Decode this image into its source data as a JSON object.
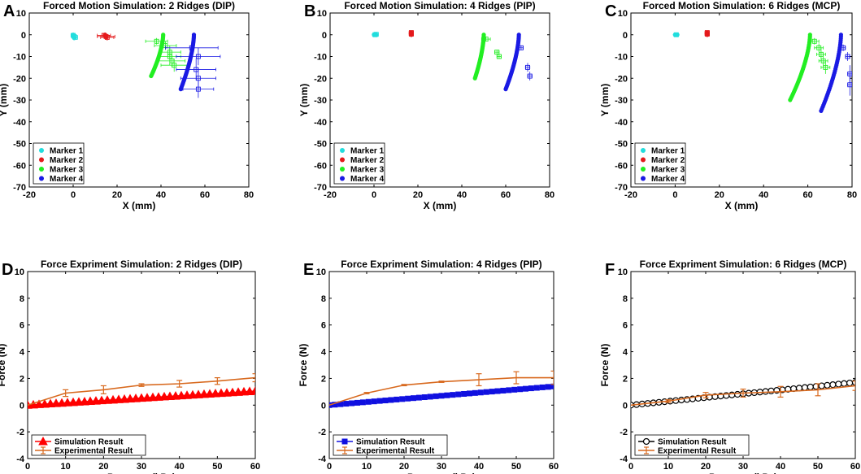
{
  "chart_data": [
    {
      "id": "A",
      "type": "scatter",
      "title": "Forced Motion Simulation: 2 Ridges (DIP)",
      "xlabel": "X (mm)",
      "ylabel": "Y (mm)",
      "xlim": [
        -20,
        80
      ],
      "ylim": [
        -70,
        10
      ],
      "xticks": [
        -20,
        0,
        20,
        40,
        60,
        80
      ],
      "yticks": [
        10,
        0,
        -10,
        -20,
        -30,
        -40,
        -50,
        -60,
        -70
      ],
      "legend": {
        "position": "bottom-left",
        "entries": [
          "Marker 1",
          "Marker 2",
          "Marker 3",
          "Marker 4"
        ]
      },
      "series": [
        {
          "name": "Marker 1",
          "color": "#22dddd",
          "sim": {
            "x0": 0,
            "y0": 0,
            "x1": 0.5,
            "y1": -1.5
          },
          "exp": [
            {
              "x": 0,
              "y": -0.3,
              "xe": 1,
              "ye": 0.3
            },
            {
              "x": 0.5,
              "y": -0.8,
              "xe": 1,
              "ye": 0.5
            },
            {
              "x": 1,
              "y": -1.2,
              "xe": 1,
              "ye": 0.5
            }
          ]
        },
        {
          "name": "Marker 2",
          "color": "#e41a1c",
          "sim": {
            "x0": 14.5,
            "y0": 0,
            "x1": 15,
            "y1": -1
          },
          "exp": [
            {
              "x": 14,
              "y": -0.3,
              "xe": 3,
              "ye": 1
            },
            {
              "x": 15,
              "y": -0.8,
              "xe": 4,
              "ye": 1.2
            },
            {
              "x": 15.5,
              "y": -1.2,
              "xe": 3,
              "ye": 1.5
            }
          ]
        },
        {
          "name": "Marker 3",
          "color": "#22ee22",
          "sim": {
            "x0": 41,
            "y0": 0,
            "x1": 35.5,
            "y1": -19
          },
          "exp": [
            {
              "x": 38,
              "y": -3,
              "xe": 5,
              "ye": 1.5
            },
            {
              "x": 42,
              "y": -5,
              "xe": 5,
              "ye": 2
            },
            {
              "x": 44,
              "y": -8,
              "xe": 5,
              "ye": 3
            },
            {
              "x": 44,
              "y": -10,
              "xe": 5,
              "ye": 4
            },
            {
              "x": 45,
              "y": -12,
              "xe": 6,
              "ye": 3
            },
            {
              "x": 46,
              "y": -14,
              "xe": 6,
              "ye": 3
            }
          ]
        },
        {
          "name": "Marker 4",
          "color": "#1a1ae4",
          "sim": {
            "x0": 55,
            "y0": 0,
            "x1": 49,
            "y1": -25
          },
          "exp": [
            {
              "x": 54,
              "y": -6,
              "xe": 12,
              "ye": 3
            },
            {
              "x": 57,
              "y": -10,
              "xe": 10,
              "ye": 4
            },
            {
              "x": 56,
              "y": -16,
              "xe": 9,
              "ye": 5
            },
            {
              "x": 57,
              "y": -20,
              "xe": 8,
              "ye": 5
            },
            {
              "x": 57,
              "y": -25,
              "xe": 7,
              "ye": 4
            }
          ]
        }
      ]
    },
    {
      "id": "B",
      "type": "scatter",
      "title": "Forced Motion Simulation: 4 Ridges (PIP)",
      "xlabel": "X (mm)",
      "ylabel": "Y (mm)",
      "xlim": [
        -20,
        80
      ],
      "ylim": [
        -70,
        10
      ],
      "xticks": [
        -20,
        0,
        20,
        40,
        60,
        80
      ],
      "yticks": [
        10,
        0,
        -10,
        -20,
        -30,
        -40,
        -50,
        -60,
        -70
      ],
      "legend": {
        "position": "bottom-left",
        "entries": [
          "Marker 1",
          "Marker 2",
          "Marker 3",
          "Marker 4"
        ]
      },
      "series": [
        {
          "name": "Marker 1",
          "color": "#22dddd",
          "sim": {
            "x0": 0,
            "y0": 0,
            "x1": 1,
            "y1": 0
          },
          "exp": [
            {
              "x": 0.5,
              "y": 0,
              "xe": 1,
              "ye": 0.3
            },
            {
              "x": 1,
              "y": 0.2,
              "xe": 1,
              "ye": 0.3
            }
          ]
        },
        {
          "name": "Marker 2",
          "color": "#e41a1c",
          "sim": {
            "x0": 17,
            "y0": 1,
            "x1": 17,
            "y1": 0
          },
          "exp": [
            {
              "x": 17,
              "y": 1,
              "xe": 1,
              "ye": 0.8
            },
            {
              "x": 17,
              "y": 0.3,
              "xe": 1,
              "ye": 0.8
            }
          ]
        },
        {
          "name": "Marker 3",
          "color": "#22ee22",
          "sim": {
            "x0": 50,
            "y0": 0,
            "x1": 46,
            "y1": -20
          },
          "exp": [
            {
              "x": 51,
              "y": -2,
              "xe": 2,
              "ye": 1
            },
            {
              "x": 56,
              "y": -8,
              "xe": 1,
              "ye": 1
            },
            {
              "x": 57,
              "y": -10,
              "xe": 1,
              "ye": 1
            }
          ]
        },
        {
          "name": "Marker 4",
          "color": "#1a1ae4",
          "sim": {
            "x0": 66,
            "y0": 0,
            "x1": 60,
            "y1": -25
          },
          "exp": [
            {
              "x": 67,
              "y": -6,
              "xe": 1,
              "ye": 1
            },
            {
              "x": 70,
              "y": -15,
              "xe": 1,
              "ye": 2
            },
            {
              "x": 71,
              "y": -19,
              "xe": 1,
              "ye": 2
            }
          ]
        }
      ]
    },
    {
      "id": "C",
      "type": "scatter",
      "title": "Forced Motion Simulation: 6 Ridges (MCP)",
      "xlabel": "X (mm)",
      "ylabel": "Y (mm)",
      "xlim": [
        -20,
        80
      ],
      "ylim": [
        -70,
        10
      ],
      "xticks": [
        -20,
        0,
        20,
        40,
        60,
        80
      ],
      "yticks": [
        10,
        0,
        -10,
        -20,
        -30,
        -40,
        -50,
        -60,
        -70
      ],
      "legend": {
        "position": "bottom-left",
        "entries": [
          "Marker 1",
          "Marker 2",
          "Marker 3",
          "Marker 4"
        ]
      },
      "series": [
        {
          "name": "Marker 1",
          "color": "#22dddd",
          "sim": {
            "x0": 0,
            "y0": 0,
            "x1": 1,
            "y1": 0
          },
          "exp": [
            {
              "x": 0.5,
              "y": 0,
              "xe": 1,
              "ye": 0.3
            }
          ]
        },
        {
          "name": "Marker 2",
          "color": "#e41a1c",
          "sim": {
            "x0": 14.5,
            "y0": 1,
            "x1": 14.5,
            "y1": 0
          },
          "exp": [
            {
              "x": 14.5,
              "y": 1,
              "xe": 1,
              "ye": 0.8
            },
            {
              "x": 14.5,
              "y": 0.3,
              "xe": 1,
              "ye": 0.8
            }
          ]
        },
        {
          "name": "Marker 3",
          "color": "#22ee22",
          "sim": {
            "x0": 61,
            "y0": 0,
            "x1": 52,
            "y1": -30
          },
          "exp": [
            {
              "x": 63,
              "y": -3,
              "xe": 2,
              "ye": 1.5
            },
            {
              "x": 65,
              "y": -6,
              "xe": 2,
              "ye": 2
            },
            {
              "x": 66,
              "y": -9,
              "xe": 2,
              "ye": 3
            },
            {
              "x": 67,
              "y": -12,
              "xe": 2,
              "ye": 3
            },
            {
              "x": 68,
              "y": -15,
              "xe": 2,
              "ye": 3
            }
          ]
        },
        {
          "name": "Marker 4",
          "color": "#1a1ae4",
          "sim": {
            "x0": 75,
            "y0": 0,
            "x1": 66,
            "y1": -35
          },
          "exp": [
            {
              "x": 76,
              "y": -6,
              "xe": 1,
              "ye": 1.5
            },
            {
              "x": 78,
              "y": -10,
              "xe": 1,
              "ye": 2
            },
            {
              "x": 79,
              "y": -18,
              "xe": 1,
              "ye": 4
            },
            {
              "x": 79,
              "y": -23,
              "xe": 1,
              "ye": 5
            }
          ]
        }
      ]
    },
    {
      "id": "D",
      "type": "line",
      "title": "Force Expriment Simulation: 2 Ridges (DIP)",
      "xlabel": "Pressure (kPa)",
      "ylabel": "Force (N)",
      "xlim": [
        0,
        60
      ],
      "ylim": [
        -4,
        10
      ],
      "xticks": [
        0,
        10,
        20,
        30,
        40,
        50,
        60
      ],
      "yticks": [
        10,
        8,
        6,
        4,
        2,
        0,
        -2,
        -4
      ],
      "legend": {
        "position": "bottom-left",
        "entries": [
          "Simulation Result",
          "Experimental Result"
        ]
      },
      "series": [
        {
          "name": "Simulation Result",
          "color": "#ff0000",
          "marker": "triangle",
          "x_start": 0,
          "x_end": 60,
          "y_start": 0,
          "y_end": 1.05,
          "points": 40
        },
        {
          "name": "Experimental Result",
          "color": "#d8691e",
          "x": [
            0,
            10,
            20,
            30,
            40,
            50,
            60
          ],
          "values": [
            0,
            0.9,
            1.15,
            1.5,
            1.6,
            1.8,
            2.05
          ],
          "err": [
            0,
            0.25,
            0.3,
            0.1,
            0.25,
            0.25,
            0.3
          ]
        }
      ]
    },
    {
      "id": "E",
      "type": "line",
      "title": "Force Expriment Simulation: 4 Ridges (PIP)",
      "xlabel": "Pressure (kPa)",
      "ylabel": "Force (N)",
      "xlim": [
        0,
        60
      ],
      "ylim": [
        -4,
        10
      ],
      "xticks": [
        0,
        10,
        20,
        30,
        40,
        50,
        60
      ],
      "yticks": [
        10,
        8,
        6,
        4,
        2,
        0,
        -2,
        -4
      ],
      "legend": {
        "position": "bottom-left",
        "entries": [
          "Simulation Result",
          "Experimental Result"
        ]
      },
      "series": [
        {
          "name": "Simulation Result",
          "color": "#1010e0",
          "marker": "square",
          "x_start": 0,
          "x_end": 60,
          "y_start": 0,
          "y_end": 1.4,
          "points": 40
        },
        {
          "name": "Experimental Result",
          "color": "#d8691e",
          "x": [
            0,
            10,
            20,
            30,
            40,
            50,
            60
          ],
          "values": [
            0,
            0.9,
            1.5,
            1.75,
            1.9,
            2.05,
            2.05
          ],
          "err": [
            0,
            0.05,
            0.05,
            0.05,
            0.45,
            0.45,
            0.5
          ]
        }
      ]
    },
    {
      "id": "F",
      "type": "line",
      "title": "Force Expriment Simulation: 6 Ridges (MCP)",
      "xlabel": "Pressure (kPa)",
      "ylabel": "Force (N)",
      "xlim": [
        0,
        60
      ],
      "ylim": [
        -4,
        10
      ],
      "xticks": [
        0,
        10,
        20,
        30,
        40,
        50,
        60
      ],
      "yticks": [
        10,
        8,
        6,
        4,
        2,
        0,
        -2,
        -4
      ],
      "legend": {
        "position": "bottom-left",
        "entries": [
          "Simulation Result",
          "Experimental Result"
        ]
      },
      "series": [
        {
          "name": "Simulation Result",
          "color": "#000000",
          "marker": "circle",
          "x_start": 0,
          "x_end": 60,
          "y_start": 0,
          "y_end": 1.7,
          "points": 40
        },
        {
          "name": "Experimental Result",
          "color": "#d8691e",
          "x": [
            0,
            10,
            20,
            30,
            40,
            50,
            60
          ],
          "values": [
            0,
            0.3,
            0.75,
            0.9,
            1.0,
            1.15,
            1.45
          ],
          "err": [
            0,
            0.1,
            0.2,
            0.3,
            0.4,
            0.45,
            0.35
          ]
        }
      ]
    }
  ]
}
